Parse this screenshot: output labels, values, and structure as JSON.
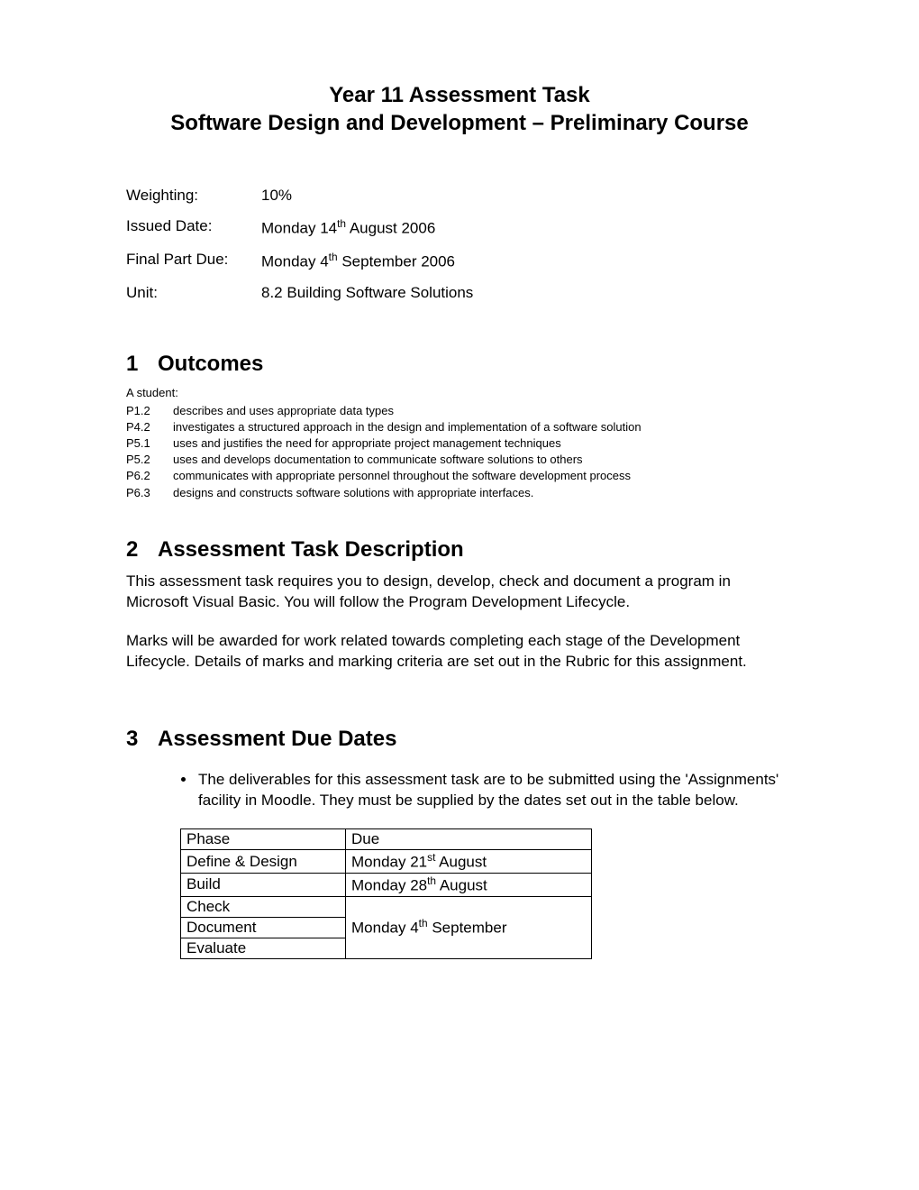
{
  "title": {
    "line1": "Year 11 Assessment Task",
    "line2": "Software Design and Development – Preliminary Course"
  },
  "meta": {
    "weighting_label": "Weighting:",
    "weighting_value": "10%",
    "issued_label": "Issued Date:",
    "issued_value_pre": "Monday 14",
    "issued_value_sup": "th",
    "issued_value_post": " August 2006",
    "final_label": "Final Part Due:",
    "final_value_pre": "Monday 4",
    "final_value_sup": "th",
    "final_value_post": " September 2006",
    "unit_label": "Unit:",
    "unit_value": "8.2 Building Software Solutions"
  },
  "sections": {
    "outcomes": {
      "num": "1",
      "title": "Outcomes",
      "student_line": "A student:",
      "items": [
        {
          "code": "P1.2",
          "desc": "describes and uses appropriate data types"
        },
        {
          "code": "P4.2",
          "desc": "investigates a structured approach in the design and implementation of a software solution"
        },
        {
          "code": "P5.1",
          "desc": "uses and justifies the need for appropriate project management techniques"
        },
        {
          "code": "P5.2",
          "desc": "uses and develops documentation to communicate software solutions to others"
        },
        {
          "code": "P6.2",
          "desc": "communicates with appropriate personnel throughout the software development process"
        },
        {
          "code": "P6.3",
          "desc": "designs and constructs software solutions with appropriate interfaces."
        }
      ]
    },
    "description": {
      "num": "2",
      "title": "Assessment Task Description",
      "para1": "This assessment task requires you to design, develop, check and document a program in Microsoft Visual Basic.  You will follow the Program Development Lifecycle.",
      "para2": "Marks will be awarded for work related towards completing each stage of the Development Lifecycle.  Details of marks and marking criteria are set out in the Rubric for this assignment."
    },
    "due_dates": {
      "num": "3",
      "title": "Assessment Due Dates",
      "bullet": "The deliverables for this assessment task are to be submitted using the 'Assignments' facility in Moodle.  They must be supplied by the dates set out in the table below.",
      "table": {
        "header_phase": "Phase",
        "header_due": "Due",
        "rows": [
          {
            "phase": "Define & Design",
            "due_pre": "Monday 21",
            "due_sup": "st",
            "due_post": " August"
          },
          {
            "phase": "Build",
            "due_pre": "Monday 28",
            "due_sup": "th",
            "due_post": " August"
          }
        ],
        "merged_phases": [
          "Check",
          "Document",
          "Evaluate"
        ],
        "merged_due_pre": "Monday 4",
        "merged_due_sup": "th",
        "merged_due_post": " September"
      }
    }
  },
  "colors": {
    "text": "#000000",
    "background": "#ffffff",
    "border": "#000000"
  },
  "typography": {
    "title_fontsize": 24,
    "section_fontsize": 24,
    "body_fontsize": 17,
    "outcomes_fontsize": 13
  }
}
